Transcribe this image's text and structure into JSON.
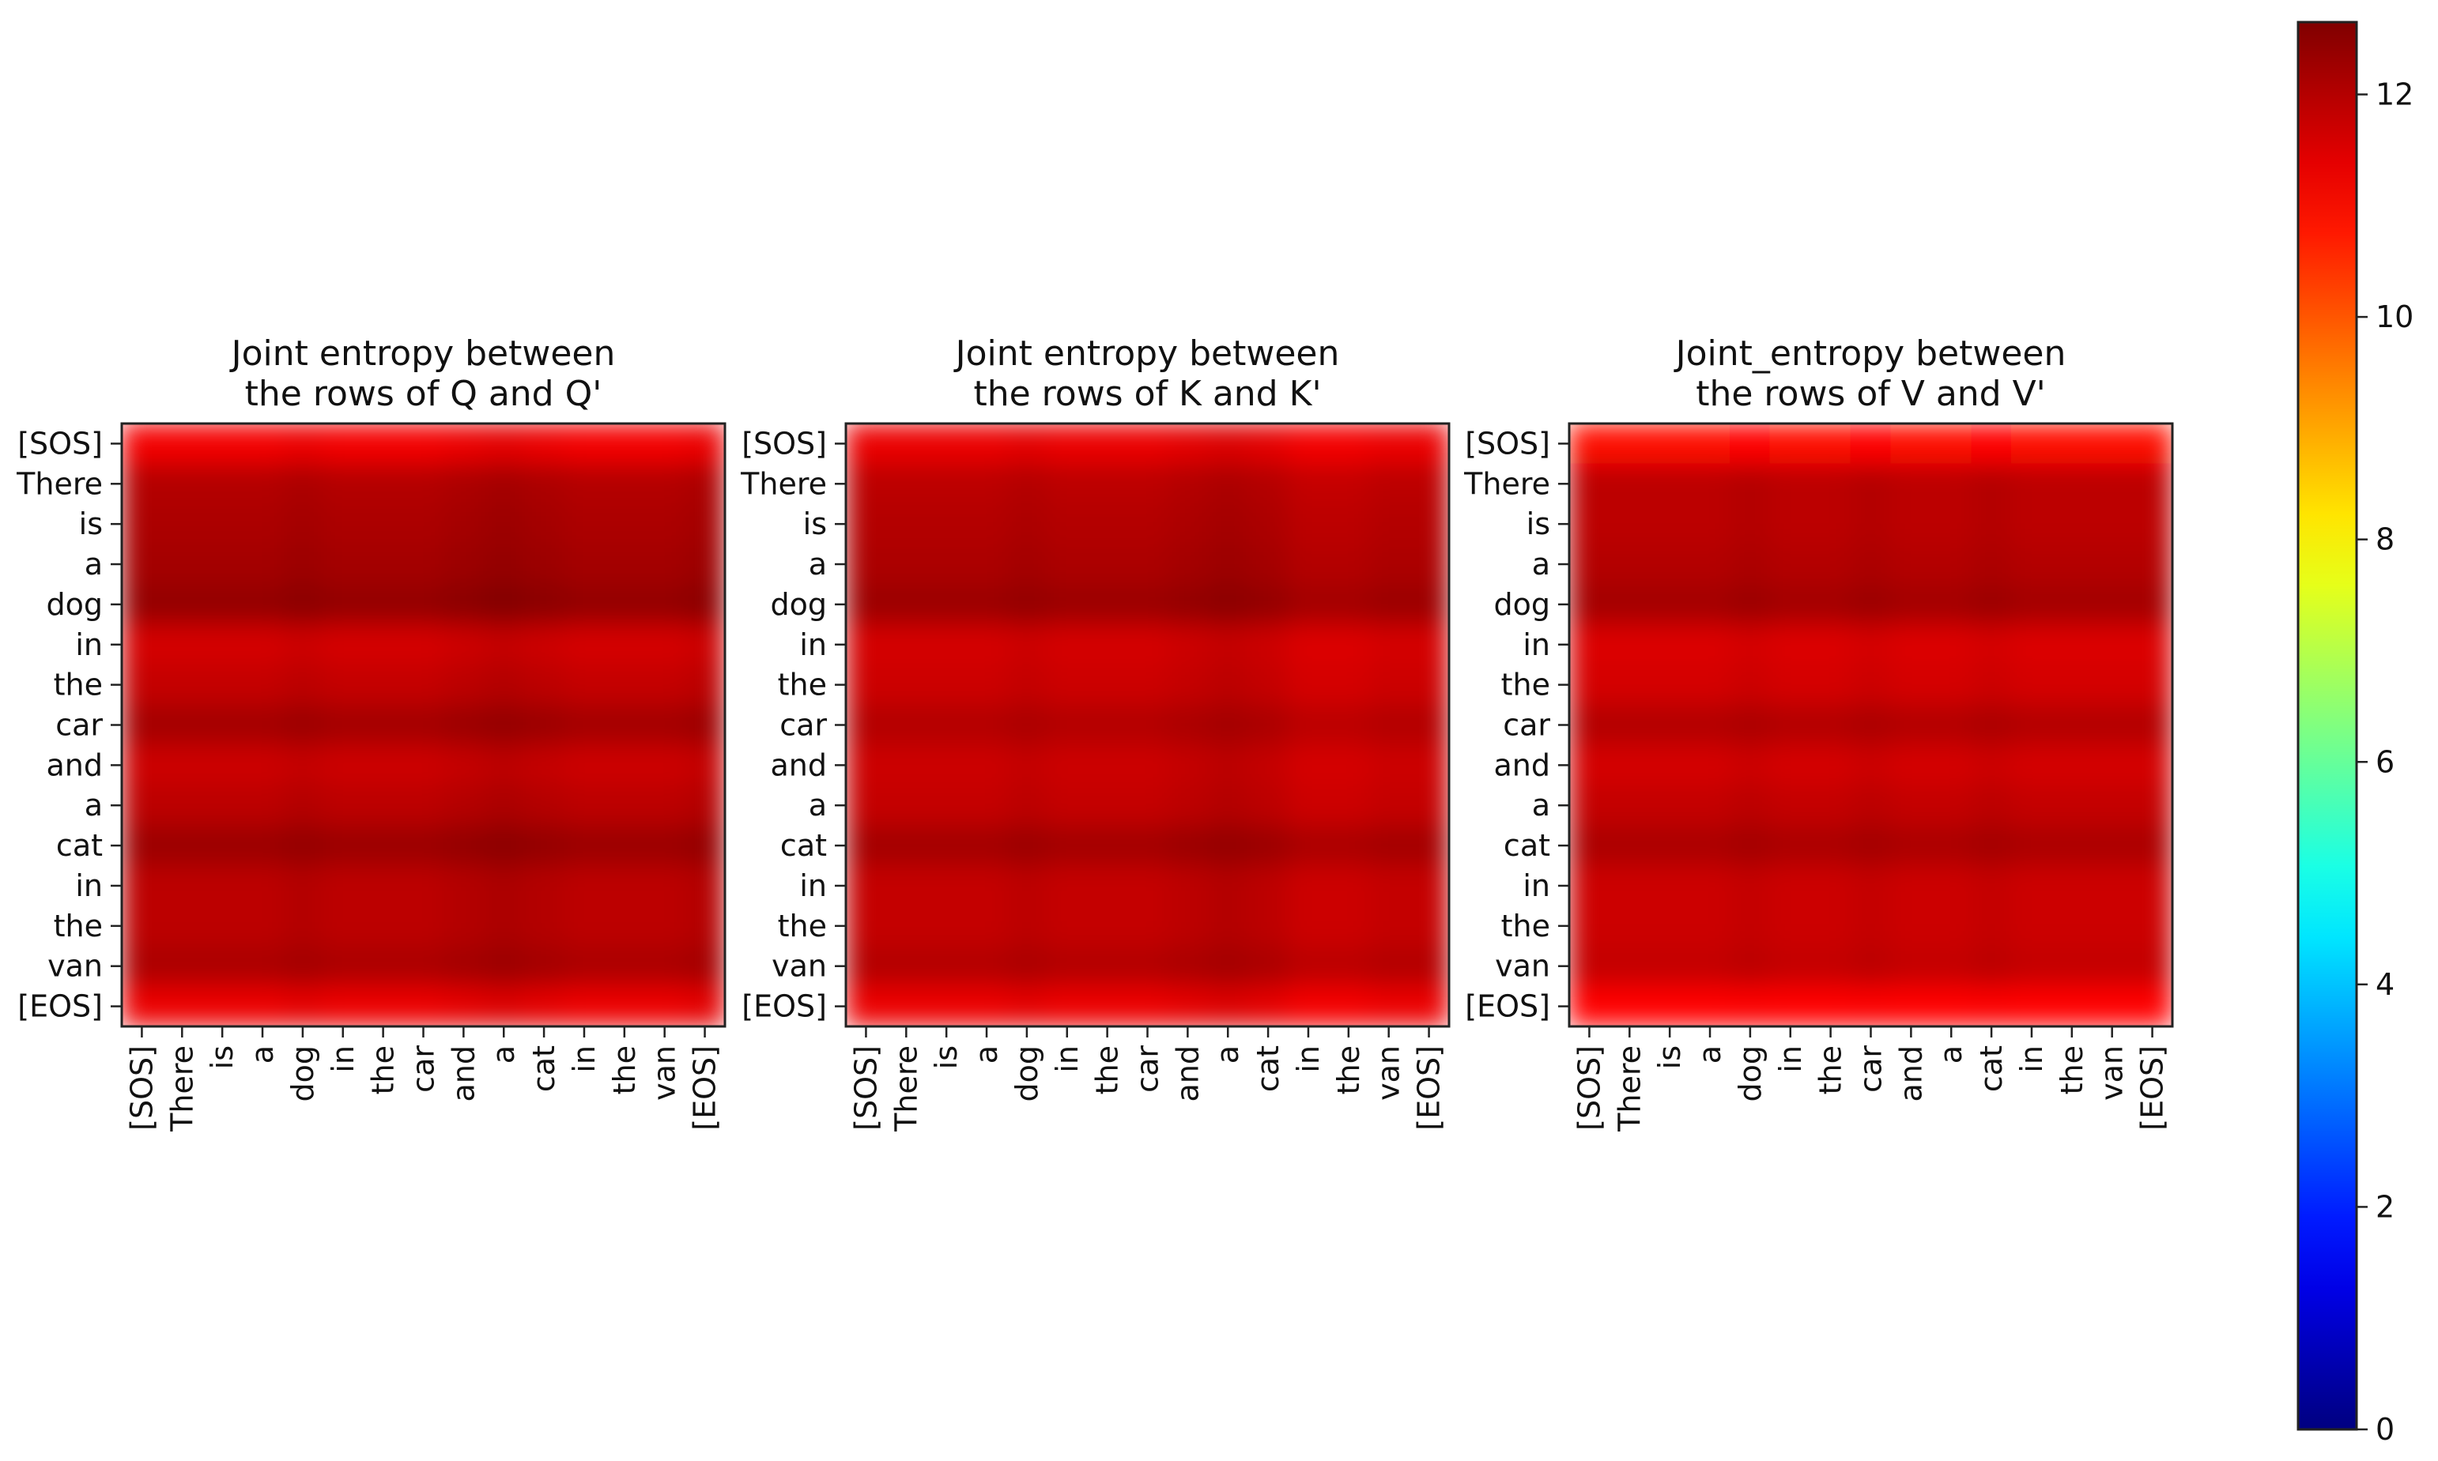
{
  "chart_data": [
    {
      "type": "heatmap",
      "title": [
        "Joint entropy between",
        "the rows of Q and Q'"
      ],
      "x_tick_labels": [
        "[SOS]",
        "There",
        "is",
        "a",
        "dog",
        "in",
        "the",
        "car",
        "and",
        "a",
        "cat",
        "in",
        "the",
        "van",
        "[EOS]"
      ],
      "y_tick_labels": [
        "[SOS]",
        "There",
        "is",
        "a",
        "dog",
        "in",
        "the",
        "car",
        "and",
        "a",
        "cat",
        "in",
        "the",
        "van",
        "[EOS]"
      ],
      "values": [
        [
          11.2,
          11.2,
          11.2,
          11.2,
          11.3,
          11.2,
          11.2,
          11.2,
          11.3,
          11.4,
          11.3,
          11.2,
          11.2,
          11.2,
          11.3
        ],
        [
          12.0,
          12.0,
          12.0,
          12.0,
          12.1,
          12.0,
          12.0,
          12.0,
          12.1,
          12.2,
          12.1,
          12.0,
          12.0,
          12.0,
          12.1
        ],
        [
          12.1,
          12.1,
          12.1,
          12.1,
          12.2,
          12.1,
          12.1,
          12.1,
          12.2,
          12.3,
          12.2,
          12.1,
          12.1,
          12.1,
          12.2
        ],
        [
          12.2,
          12.2,
          12.2,
          12.2,
          12.3,
          12.2,
          12.2,
          12.2,
          12.3,
          12.4,
          12.3,
          12.2,
          12.2,
          12.2,
          12.3
        ],
        [
          12.4,
          12.4,
          12.4,
          12.4,
          12.5,
          12.4,
          12.4,
          12.4,
          12.5,
          12.6,
          12.5,
          12.4,
          12.4,
          12.4,
          12.5
        ],
        [
          11.6,
          11.6,
          11.6,
          11.6,
          11.7,
          11.6,
          11.6,
          11.6,
          11.7,
          11.8,
          11.7,
          11.6,
          11.6,
          11.6,
          11.7
        ],
        [
          11.8,
          11.8,
          11.8,
          11.8,
          11.9,
          11.8,
          11.8,
          11.8,
          11.9,
          12.0,
          11.9,
          11.8,
          11.8,
          11.8,
          11.9
        ],
        [
          12.2,
          12.2,
          12.2,
          12.2,
          12.3,
          12.2,
          12.2,
          12.2,
          12.3,
          12.4,
          12.3,
          12.2,
          12.2,
          12.2,
          12.3
        ],
        [
          11.7,
          11.7,
          11.7,
          11.7,
          11.8,
          11.7,
          11.7,
          11.7,
          11.8,
          11.9,
          11.8,
          11.7,
          11.7,
          11.7,
          11.8
        ],
        [
          11.9,
          11.9,
          11.9,
          11.9,
          12.0,
          11.9,
          11.9,
          11.9,
          12.0,
          12.1,
          12.0,
          11.9,
          11.9,
          11.9,
          12.0
        ],
        [
          12.3,
          12.3,
          12.3,
          12.3,
          12.4,
          12.3,
          12.3,
          12.3,
          12.4,
          12.5,
          12.4,
          12.3,
          12.3,
          12.3,
          12.4
        ],
        [
          11.9,
          11.9,
          11.9,
          11.9,
          12.0,
          11.9,
          11.9,
          11.9,
          12.0,
          12.1,
          12.0,
          11.9,
          11.9,
          11.9,
          12.0
        ],
        [
          11.9,
          11.9,
          11.9,
          11.9,
          12.0,
          11.9,
          11.9,
          11.9,
          12.0,
          12.1,
          12.0,
          11.9,
          11.9,
          11.9,
          12.0
        ],
        [
          12.1,
          12.1,
          12.1,
          12.1,
          12.2,
          12.1,
          12.1,
          12.1,
          12.2,
          12.3,
          12.2,
          12.1,
          12.1,
          12.1,
          12.2
        ],
        [
          11.3,
          11.3,
          11.3,
          11.3,
          11.4,
          11.3,
          11.3,
          11.3,
          11.4,
          11.5,
          11.4,
          11.3,
          11.3,
          11.3,
          11.4
        ]
      ]
    },
    {
      "type": "heatmap",
      "title": [
        "Joint entropy between",
        "the rows of K and K'"
      ],
      "x_tick_labels": [
        "[SOS]",
        "There",
        "is",
        "a",
        "dog",
        "in",
        "the",
        "car",
        "and",
        "a",
        "cat",
        "in",
        "the",
        "van",
        "[EOS]"
      ],
      "y_tick_labels": [
        "[SOS]",
        "There",
        "is",
        "a",
        "dog",
        "in",
        "the",
        "car",
        "and",
        "a",
        "cat",
        "in",
        "the",
        "van",
        "[EOS]"
      ],
      "values": [
        [
          11.3,
          11.3,
          11.3,
          11.3,
          11.4,
          11.3,
          11.3,
          11.3,
          11.4,
          11.5,
          11.4,
          11.2,
          11.2,
          11.3,
          11.3
        ],
        [
          11.9,
          11.9,
          11.9,
          11.9,
          12.0,
          11.9,
          11.9,
          11.9,
          12.0,
          12.1,
          12.0,
          11.8,
          11.8,
          11.9,
          11.9
        ],
        [
          12.0,
          12.0,
          12.0,
          12.0,
          12.1,
          12.0,
          12.0,
          12.0,
          12.1,
          12.2,
          12.1,
          11.9,
          11.9,
          12.0,
          12.0
        ],
        [
          12.1,
          12.1,
          12.1,
          12.1,
          12.2,
          12.1,
          12.1,
          12.1,
          12.2,
          12.3,
          12.2,
          12.0,
          12.0,
          12.1,
          12.1
        ],
        [
          12.3,
          12.3,
          12.3,
          12.3,
          12.4,
          12.3,
          12.3,
          12.3,
          12.4,
          12.5,
          12.4,
          12.2,
          12.2,
          12.3,
          12.3
        ],
        [
          11.6,
          11.6,
          11.6,
          11.6,
          11.7,
          11.6,
          11.6,
          11.6,
          11.7,
          11.8,
          11.7,
          11.5,
          11.5,
          11.6,
          11.6
        ],
        [
          11.7,
          11.7,
          11.7,
          11.7,
          11.8,
          11.7,
          11.7,
          11.7,
          11.8,
          11.9,
          11.8,
          11.6,
          11.6,
          11.7,
          11.7
        ],
        [
          12.0,
          12.0,
          12.0,
          12.0,
          12.1,
          12.0,
          12.0,
          12.0,
          12.1,
          12.2,
          12.1,
          11.9,
          11.9,
          12.0,
          12.0
        ],
        [
          11.7,
          11.7,
          11.7,
          11.7,
          11.8,
          11.7,
          11.7,
          11.7,
          11.8,
          11.9,
          11.8,
          11.6,
          11.6,
          11.7,
          11.7
        ],
        [
          11.8,
          11.8,
          11.8,
          11.8,
          11.9,
          11.8,
          11.8,
          11.8,
          11.9,
          12.0,
          11.9,
          11.7,
          11.7,
          11.8,
          11.8
        ],
        [
          12.2,
          12.2,
          12.2,
          12.2,
          12.3,
          12.2,
          12.2,
          12.2,
          12.3,
          12.4,
          12.3,
          12.1,
          12.1,
          12.2,
          12.2
        ],
        [
          11.8,
          11.8,
          11.8,
          11.8,
          11.9,
          11.8,
          11.8,
          11.8,
          11.9,
          12.0,
          11.9,
          11.7,
          11.7,
          11.8,
          11.8
        ],
        [
          11.8,
          11.8,
          11.8,
          11.8,
          11.9,
          11.8,
          11.8,
          11.8,
          11.9,
          12.0,
          11.9,
          11.7,
          11.7,
          11.8,
          11.8
        ],
        [
          12.0,
          12.0,
          12.0,
          12.0,
          12.1,
          12.0,
          12.0,
          12.0,
          12.1,
          12.2,
          12.1,
          11.9,
          11.9,
          12.0,
          12.0
        ],
        [
          11.3,
          11.3,
          11.3,
          11.3,
          11.4,
          11.3,
          11.3,
          11.3,
          11.4,
          11.5,
          11.4,
          11.2,
          11.2,
          11.3,
          11.3
        ]
      ]
    },
    {
      "type": "heatmap",
      "title": [
        "Joint_entropy between",
        "the rows of V and V'"
      ],
      "x_tick_labels": [
        "[SOS]",
        "There",
        "is",
        "a",
        "dog",
        "in",
        "the",
        "car",
        "and",
        "a",
        "cat",
        "in",
        "the",
        "van",
        "[EOS]"
      ],
      "y_tick_labels": [
        "[SOS]",
        "There",
        "is",
        "a",
        "dog",
        "in",
        "the",
        "car",
        "and",
        "a",
        "cat",
        "in",
        "the",
        "van",
        "[EOS]"
      ],
      "values": [
        [
          10.9,
          10.9,
          10.9,
          10.9,
          11.0,
          10.9,
          10.9,
          11.0,
          10.9,
          10.9,
          11.0,
          10.9,
          10.9,
          10.9,
          10.9
        ],
        [
          11.9,
          11.9,
          11.9,
          11.9,
          12.0,
          11.9,
          11.9,
          12.0,
          11.9,
          11.9,
          12.0,
          11.9,
          11.9,
          11.9,
          11.9
        ],
        [
          11.9,
          11.9,
          11.9,
          11.9,
          12.0,
          11.9,
          11.9,
          12.0,
          11.9,
          11.9,
          12.0,
          11.9,
          11.9,
          11.9,
          11.9
        ],
        [
          12.0,
          12.0,
          12.0,
          12.0,
          12.1,
          12.0,
          12.0,
          12.1,
          12.0,
          12.0,
          12.1,
          12.0,
          12.0,
          12.0,
          12.0
        ],
        [
          12.2,
          12.2,
          12.2,
          12.2,
          12.3,
          12.2,
          12.2,
          12.3,
          12.2,
          12.2,
          12.3,
          12.2,
          12.2,
          12.2,
          12.2
        ],
        [
          11.5,
          11.5,
          11.5,
          11.5,
          11.6,
          11.5,
          11.5,
          11.6,
          11.5,
          11.5,
          11.6,
          11.5,
          11.5,
          11.5,
          11.5
        ],
        [
          11.6,
          11.6,
          11.6,
          11.6,
          11.7,
          11.6,
          11.6,
          11.7,
          11.6,
          11.6,
          11.7,
          11.6,
          11.6,
          11.6,
          11.6
        ],
        [
          12.0,
          12.0,
          12.0,
          12.0,
          12.1,
          12.0,
          12.0,
          12.1,
          12.0,
          12.0,
          12.1,
          12.0,
          12.0,
          12.0,
          12.0
        ],
        [
          11.6,
          11.6,
          11.6,
          11.6,
          11.7,
          11.6,
          11.6,
          11.7,
          11.6,
          11.6,
          11.7,
          11.6,
          11.6,
          11.6,
          11.6
        ],
        [
          11.8,
          11.8,
          11.8,
          11.8,
          11.9,
          11.8,
          11.8,
          11.9,
          11.8,
          11.8,
          11.9,
          11.8,
          11.8,
          11.8,
          11.8
        ],
        [
          12.1,
          12.1,
          12.1,
          12.1,
          12.2,
          12.1,
          12.1,
          12.2,
          12.1,
          12.1,
          12.2,
          12.1,
          12.1,
          12.1,
          12.1
        ],
        [
          11.7,
          11.7,
          11.7,
          11.7,
          11.8,
          11.7,
          11.7,
          11.8,
          11.7,
          11.7,
          11.8,
          11.7,
          11.7,
          11.7,
          11.7
        ],
        [
          11.7,
          11.7,
          11.7,
          11.7,
          11.8,
          11.7,
          11.7,
          11.8,
          11.7,
          11.7,
          11.8,
          11.7,
          11.7,
          11.7,
          11.7
        ],
        [
          11.8,
          11.8,
          11.8,
          11.8,
          11.9,
          11.8,
          11.8,
          11.9,
          11.8,
          11.8,
          11.9,
          11.8,
          11.8,
          11.8,
          11.8
        ],
        [
          11.0,
          11.0,
          11.0,
          11.0,
          11.1,
          11.0,
          11.0,
          11.1,
          11.0,
          11.0,
          11.1,
          11.0,
          11.0,
          11.0,
          11.0
        ]
      ]
    }
  ],
  "colorbar": {
    "colormap": "jet",
    "range": [
      0,
      12.65
    ],
    "tick_labels": [
      "0",
      "2",
      "4",
      "6",
      "8",
      "10",
      "12"
    ],
    "tick_values": [
      0,
      2,
      4,
      6,
      8,
      10,
      12
    ]
  }
}
